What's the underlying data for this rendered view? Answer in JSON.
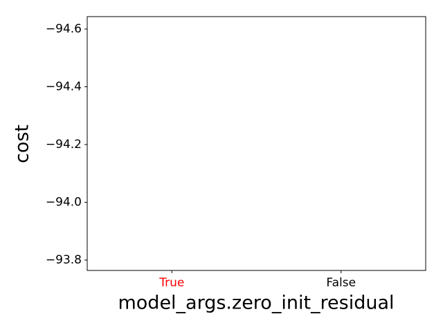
{
  "chart_data": {
    "type": "bar",
    "xlabel": "model_args.zero_init_residual",
    "ylabel": "cost",
    "categories": [
      "True",
      "False"
    ],
    "category_colors": [
      "#ff0000",
      "#000000"
    ],
    "ylim": [
      -93.764,
      -94.643
    ],
    "yticks": [
      {
        "value": -94.6,
        "label": "−94.6"
      },
      {
        "value": -94.4,
        "label": "−94.4"
      },
      {
        "value": -94.2,
        "label": "−94.2"
      },
      {
        "value": -94.0,
        "label": "−94.0"
      },
      {
        "value": -93.8,
        "label": "−93.8"
      }
    ]
  }
}
